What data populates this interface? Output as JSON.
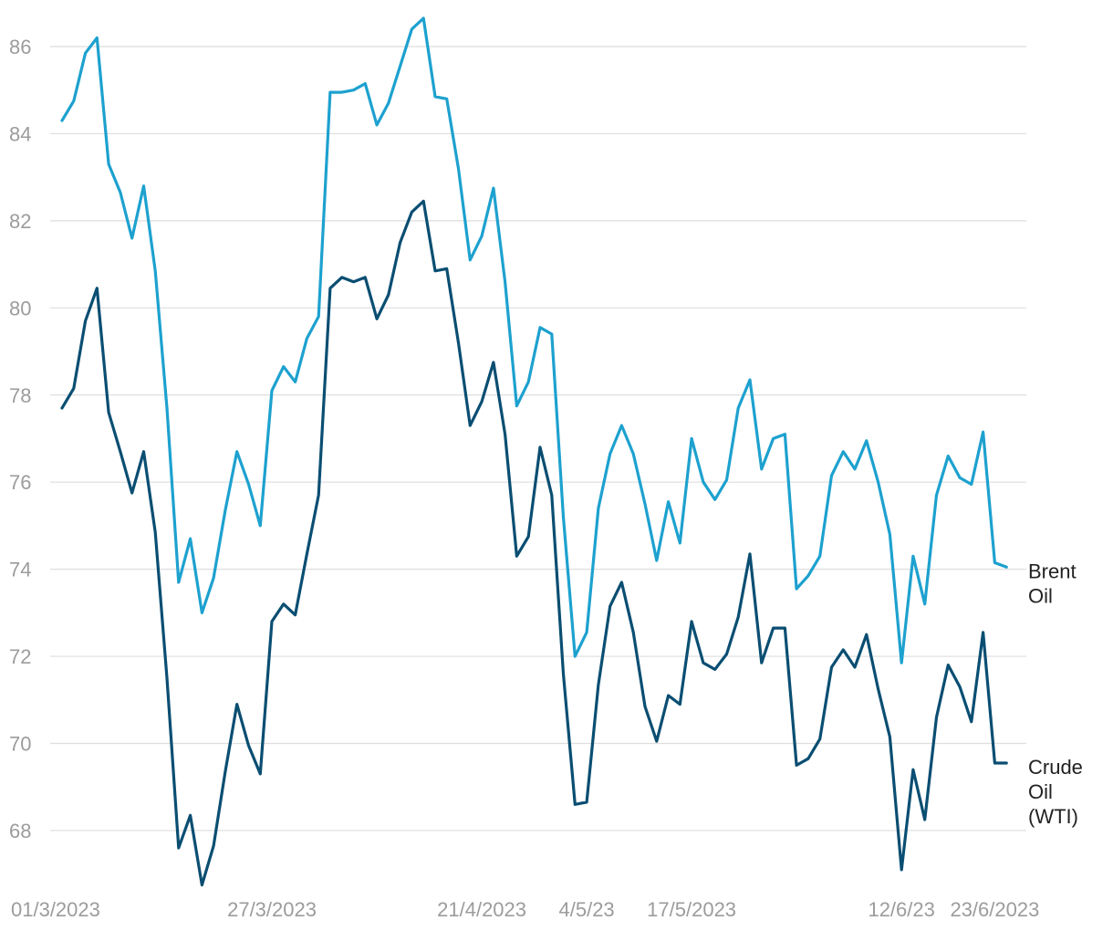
{
  "chart_data": {
    "type": "line",
    "title": "",
    "xlabel": "",
    "ylabel": "",
    "ylim": [
      66.8,
      86.8
    ],
    "grid": "horizontal",
    "legend": "end-of-line labels",
    "y_ticks": [
      68,
      70,
      72,
      74,
      76,
      78,
      80,
      82,
      84,
      86
    ],
    "x_tick_labels": [
      {
        "i": 0,
        "label": "01/3/2023"
      },
      {
        "i": 18,
        "label": "27/3/2023"
      },
      {
        "i": 36,
        "label": "21/4/2023"
      },
      {
        "i": 45,
        "label": "4/5/23"
      },
      {
        "i": 54,
        "label": "17/5/2023"
      },
      {
        "i": 72,
        "label": "12/6/23"
      },
      {
        "i": 80,
        "label": "23/6/2023"
      }
    ],
    "series": [
      {
        "name": "Brent Oil",
        "label_lines": [
          "Brent",
          "Oil"
        ],
        "color": "#1da1cf",
        "values": [
          84.3,
          84.75,
          85.85,
          86.2,
          83.3,
          82.65,
          81.6,
          82.8,
          80.85,
          77.7,
          73.7,
          74.7,
          73.0,
          73.8,
          75.35,
          76.7,
          75.95,
          75.0,
          78.1,
          78.65,
          78.3,
          79.3,
          79.8,
          84.95,
          84.95,
          85.0,
          85.15,
          84.2,
          84.7,
          85.55,
          86.4,
          86.65,
          84.85,
          84.8,
          83.2,
          81.1,
          81.65,
          82.75,
          80.6,
          77.75,
          78.3,
          79.55,
          79.4,
          75.2,
          72.0,
          72.55,
          75.4,
          76.65,
          77.3,
          76.65,
          75.5,
          74.2,
          75.55,
          74.6,
          77.0,
          76.0,
          75.6,
          76.05,
          77.7,
          78.35,
          76.3,
          77.0,
          77.1,
          73.55,
          73.85,
          74.3,
          76.15,
          76.7,
          76.3,
          76.95,
          76.0,
          74.8,
          71.85,
          74.3,
          73.2,
          75.7,
          76.6,
          76.1,
          75.95,
          77.15,
          74.15,
          74.05
        ]
      },
      {
        "name": "Crude Oil (WTI)",
        "label_lines": [
          "Crude",
          "Oil",
          "(WTI)"
        ],
        "color": "#0a4e72",
        "values": [
          77.7,
          78.15,
          79.7,
          80.45,
          77.6,
          76.7,
          75.75,
          76.7,
          74.85,
          71.5,
          67.6,
          68.35,
          66.75,
          67.65,
          69.35,
          70.9,
          69.95,
          69.3,
          72.8,
          73.2,
          72.95,
          74.35,
          75.7,
          80.45,
          80.7,
          80.6,
          80.7,
          79.75,
          80.3,
          81.5,
          82.2,
          82.45,
          80.85,
          80.9,
          79.2,
          77.3,
          77.85,
          78.75,
          77.1,
          74.3,
          74.75,
          76.8,
          75.7,
          71.6,
          68.6,
          68.65,
          71.35,
          73.15,
          73.7,
          72.55,
          70.85,
          70.05,
          71.1,
          70.9,
          72.8,
          71.85,
          71.7,
          72.05,
          72.9,
          74.35,
          71.85,
          72.65,
          72.65,
          69.5,
          69.65,
          70.1,
          71.75,
          72.15,
          71.75,
          72.5,
          71.25,
          70.15,
          67.1,
          69.4,
          68.25,
          70.6,
          71.8,
          71.3,
          70.5,
          72.55,
          69.55,
          69.55
        ]
      }
    ]
  }
}
